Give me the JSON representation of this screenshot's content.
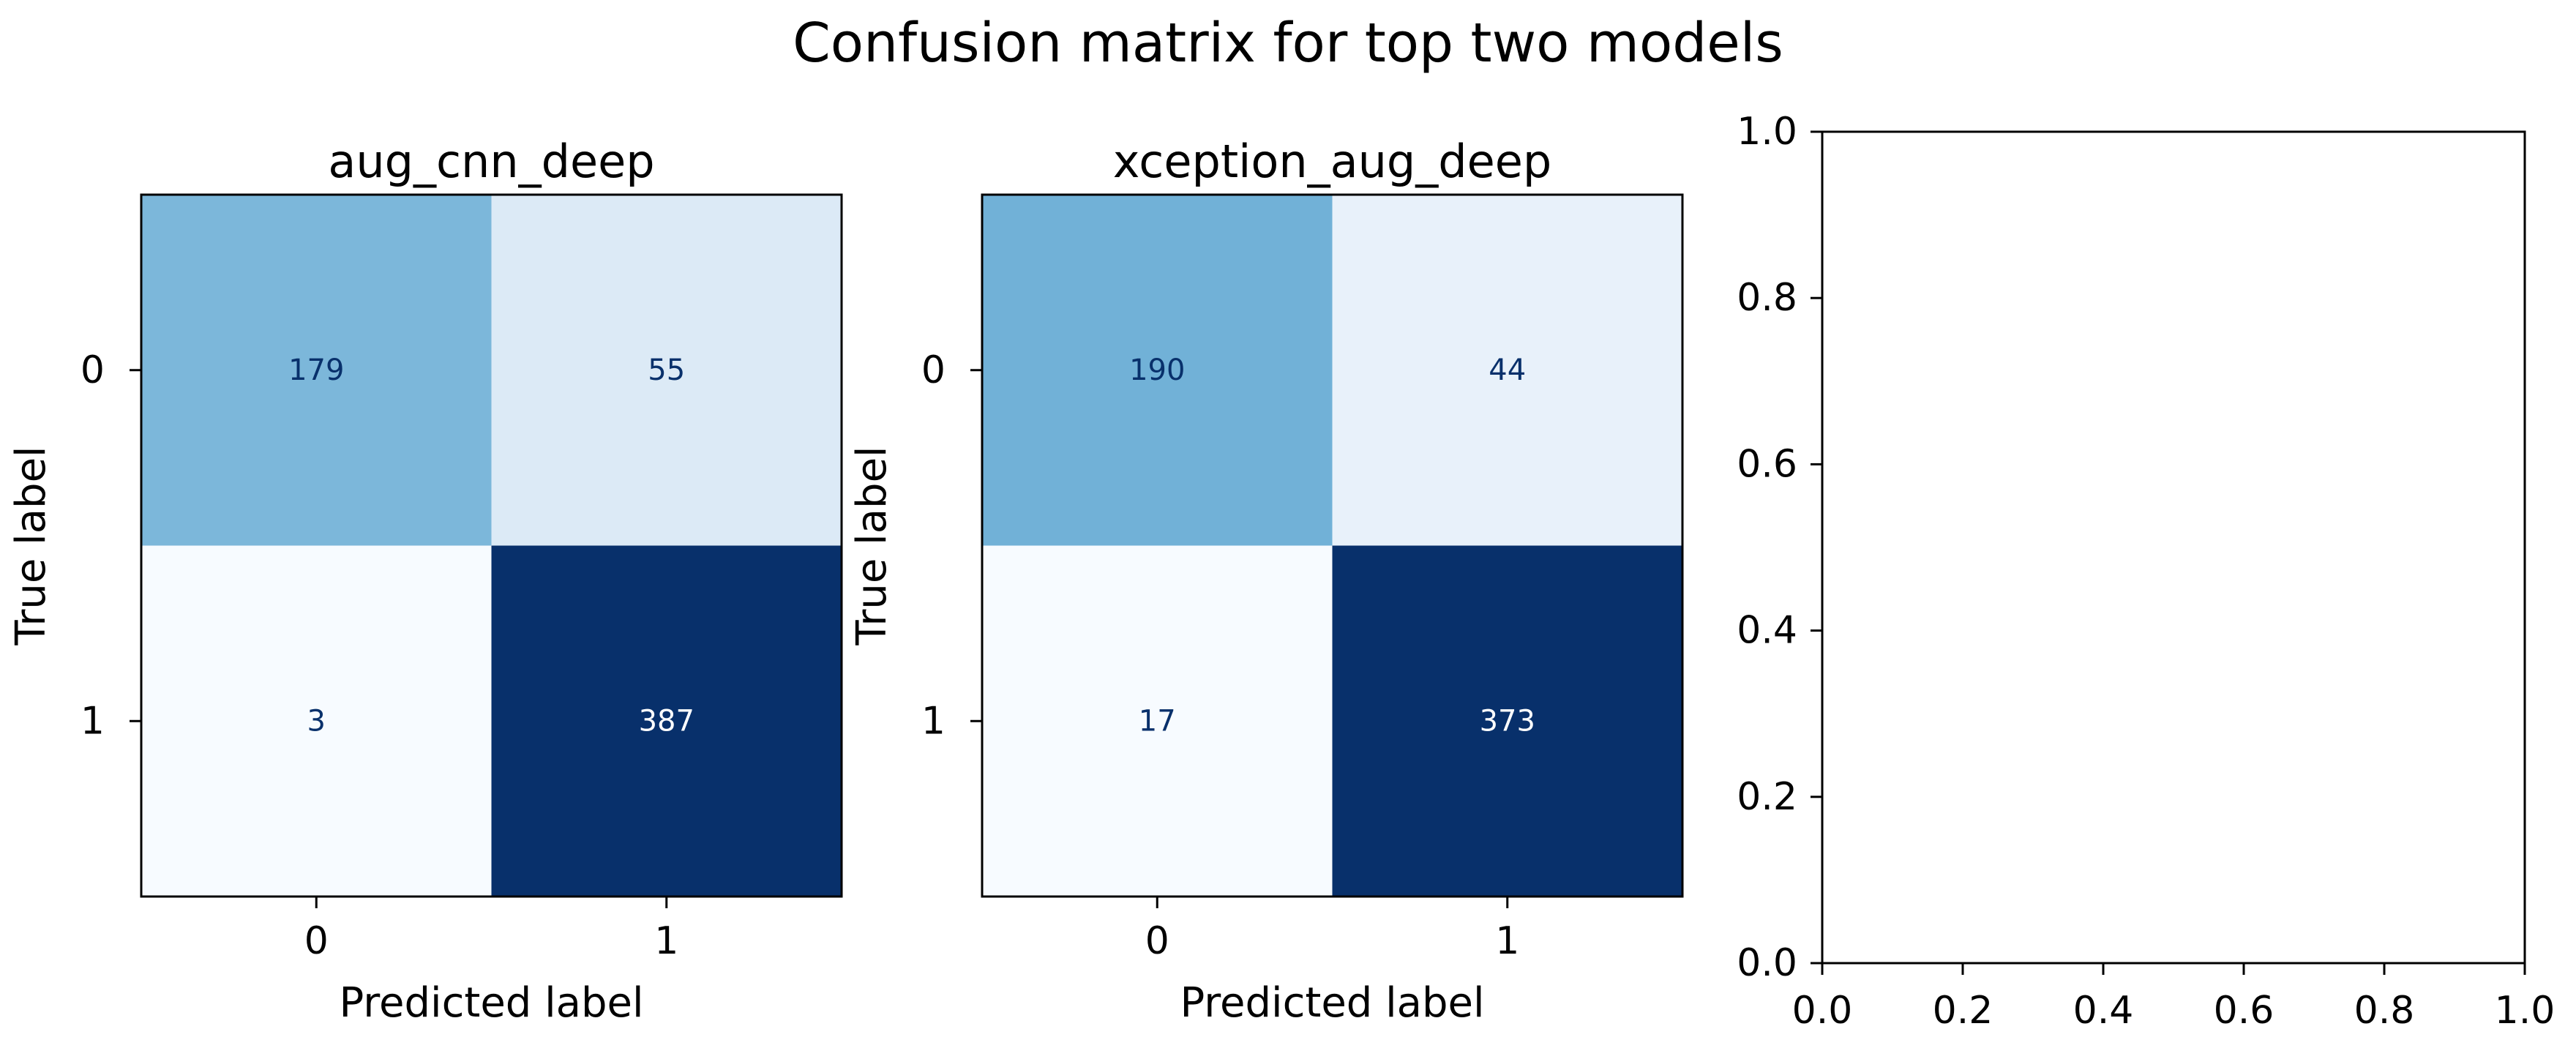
{
  "figure_title": "Confusion matrix for top two models",
  "colormap": {
    "name": "Blues",
    "stops": [
      "#f7fbff",
      "#deebf7",
      "#c6dbef",
      "#9ecae1",
      "#6baed6",
      "#4292c6",
      "#2171b5",
      "#08519c",
      "#08306b"
    ],
    "light_text": "#ffffff",
    "dark_text": "#08306b"
  },
  "chart_data": [
    {
      "type": "heatmap",
      "title": "aug_cnn_deep",
      "xlabel": "Predicted label",
      "ylabel": "True label",
      "x_ticks": [
        "0",
        "1"
      ],
      "y_ticks": [
        "0",
        "1"
      ],
      "matrix": [
        [
          179,
          55
        ],
        [
          3,
          387
        ]
      ],
      "color_range": [
        3,
        387
      ]
    },
    {
      "type": "heatmap",
      "title": "xception_aug_deep",
      "xlabel": "Predicted label",
      "ylabel": "True label",
      "x_ticks": [
        "0",
        "1"
      ],
      "y_ticks": [
        "0",
        "1"
      ],
      "matrix": [
        [
          190,
          44
        ],
        [
          17,
          373
        ]
      ],
      "color_range": [
        17,
        373
      ]
    },
    {
      "type": "scatter",
      "title": "",
      "xlabel": "",
      "ylabel": "",
      "series": [],
      "xlim": [
        0.0,
        1.0
      ],
      "ylim": [
        0.0,
        1.0
      ],
      "x_ticks": [
        "0.0",
        "0.2",
        "0.4",
        "0.6",
        "0.8",
        "1.0"
      ],
      "y_ticks": [
        "0.0",
        "0.2",
        "0.4",
        "0.6",
        "0.8",
        "1.0"
      ]
    }
  ]
}
